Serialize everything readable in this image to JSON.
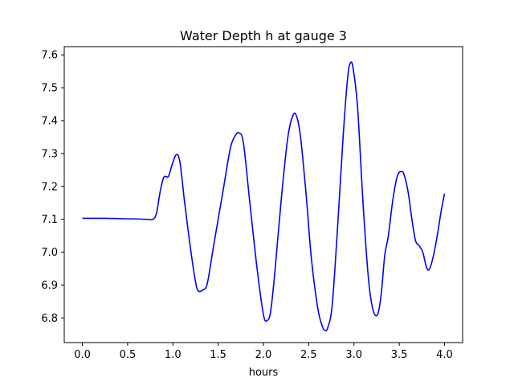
{
  "chart_data": {
    "type": "line",
    "title": "Water Depth h at gauge 3",
    "xlabel": "hours",
    "ylabel": "",
    "xlim": [
      -0.2,
      4.2
    ],
    "ylim": [
      6.725,
      7.625
    ],
    "x_ticks": [
      0.0,
      0.5,
      1.0,
      1.5,
      2.0,
      2.5,
      3.0,
      3.5,
      4.0
    ],
    "x_tick_labels": [
      "0.0",
      "0.5",
      "1.0",
      "1.5",
      "2.0",
      "2.5",
      "3.0",
      "3.5",
      "4.0"
    ],
    "y_ticks": [
      6.8,
      6.9,
      7.0,
      7.1,
      7.2,
      7.3,
      7.4,
      7.5,
      7.6
    ],
    "y_tick_labels": [
      "6.8",
      "6.9",
      "7.0",
      "7.1",
      "7.2",
      "7.3",
      "7.4",
      "7.5",
      "7.6"
    ],
    "grid": false,
    "legend": "none",
    "series": [
      {
        "color": "#0000ff",
        "x": [
          0.0,
          0.2,
          0.4,
          0.6,
          0.7,
          0.78,
          0.82,
          0.86,
          0.9,
          0.95,
          0.99,
          1.04,
          1.08,
          1.13,
          1.2,
          1.25,
          1.28,
          1.33,
          1.38,
          1.45,
          1.55,
          1.63,
          1.68,
          1.73,
          1.78,
          1.85,
          1.93,
          2.0,
          2.04,
          2.08,
          2.13,
          2.2,
          2.27,
          2.33,
          2.37,
          2.41,
          2.47,
          2.53,
          2.6,
          2.65,
          2.68,
          2.71,
          2.76,
          2.82,
          2.88,
          2.93,
          2.96,
          2.99,
          3.04,
          3.1,
          3.16,
          3.21,
          3.26,
          3.3,
          3.34,
          3.38,
          3.43,
          3.48,
          3.53,
          3.56,
          3.6,
          3.64,
          3.68,
          3.72,
          3.76,
          3.8,
          3.83,
          3.87,
          3.92,
          3.96,
          4.0
        ],
        "y": [
          7.103,
          7.103,
          7.102,
          7.101,
          7.1,
          7.1,
          7.12,
          7.185,
          7.228,
          7.23,
          7.265,
          7.297,
          7.27,
          7.15,
          7.0,
          6.91,
          6.882,
          6.885,
          6.905,
          7.02,
          7.18,
          7.31,
          7.35,
          7.363,
          7.33,
          7.15,
          6.95,
          6.81,
          6.792,
          6.82,
          6.95,
          7.17,
          7.35,
          7.418,
          7.41,
          7.35,
          7.18,
          6.98,
          6.83,
          6.775,
          6.762,
          6.77,
          6.84,
          7.08,
          7.35,
          7.53,
          7.575,
          7.56,
          7.44,
          7.15,
          6.92,
          6.825,
          6.81,
          6.87,
          6.99,
          7.05,
          7.16,
          7.232,
          7.245,
          7.23,
          7.18,
          7.1,
          7.035,
          7.02,
          7.0,
          6.955,
          6.947,
          6.98,
          7.05,
          7.12,
          7.178
        ]
      }
    ]
  }
}
